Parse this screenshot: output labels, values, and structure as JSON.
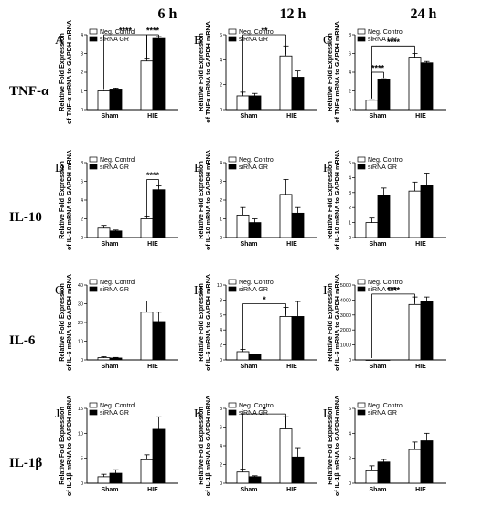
{
  "column_headers": [
    "6 h",
    "12 h",
    "24 h"
  ],
  "row_headers": [
    "TNF-α",
    "IL-10",
    "IL-6",
    "IL-1β"
  ],
  "legend": [
    "Neg. Control",
    "siRNA GR"
  ],
  "colors": {
    "neg_control": "#ffffff",
    "sirna_gr": "#000000",
    "axis": "#000000"
  },
  "chart_data": [
    {
      "type": "bar",
      "letter": "A",
      "ylabel": "Relative Fold Expression of TNF-α mRNA to GAPDH mRNA",
      "categories": [
        "Sham",
        "HIE"
      ],
      "ylim": [
        0,
        4
      ],
      "yticks": [
        0,
        1,
        2,
        3,
        4
      ],
      "series": [
        {
          "name": "Neg. Control",
          "values": [
            1.0,
            2.6
          ],
          "errors": [
            0.05,
            0.1
          ]
        },
        {
          "name": "siRNA GR",
          "values": [
            1.1,
            3.8
          ],
          "errors": [
            0.05,
            0.1
          ]
        }
      ],
      "annotations": [
        {
          "text": "****",
          "from": [
            0,
            0
          ],
          "to": [
            1,
            0
          ],
          "y": 4.5
        },
        {
          "text": "****",
          "from": [
            1,
            0
          ],
          "to": [
            1,
            1
          ],
          "y": 4.2
        }
      ]
    },
    {
      "type": "bar",
      "letter": "B",
      "ylabel": "Relative Fold Expression of TNFα mRNA to GAPDH mRNA",
      "categories": [
        "Sham",
        "HIE"
      ],
      "ylim": [
        0,
        6
      ],
      "yticks": [
        0,
        2,
        4,
        6
      ],
      "series": [
        {
          "name": "Neg. Control",
          "values": [
            1.1,
            4.3
          ],
          "errors": [
            0.3,
            0.8
          ]
        },
        {
          "name": "siRNA GR",
          "values": [
            1.1,
            2.6
          ],
          "errors": [
            0.2,
            0.5
          ]
        }
      ],
      "annotations": [
        {
          "text": "**",
          "from": [
            0,
            0
          ],
          "to": [
            1,
            0
          ],
          "y": 6.2
        }
      ]
    },
    {
      "type": "bar",
      "letter": "C",
      "ylabel": "Relative Fold Expression of TNFα mRNA to GAPDH mRNA",
      "categories": [
        "Sham",
        "HIE"
      ],
      "ylim": [
        0,
        8
      ],
      "yticks": [
        0,
        2,
        4,
        6,
        8
      ],
      "series": [
        {
          "name": "Neg. Control",
          "values": [
            1.0,
            5.6
          ],
          "errors": [
            0.05,
            0.4
          ]
        },
        {
          "name": "siRNA GR",
          "values": [
            3.2,
            5.0
          ],
          "errors": [
            0.1,
            0.15
          ]
        }
      ],
      "annotations": [
        {
          "text": "****",
          "from": [
            0,
            0
          ],
          "to": [
            0,
            1
          ],
          "y": 4.0
        },
        {
          "text": "****",
          "from": [
            0,
            0
          ],
          "to": [
            1,
            0
          ],
          "y": 6.8
        }
      ]
    },
    {
      "type": "bar",
      "letter": "D",
      "ylabel": "Relative Fold Expression of IL-10 mRNA to GAPDH mRNA",
      "categories": [
        "Sham",
        "HIE"
      ],
      "ylim": [
        0,
        8
      ],
      "yticks": [
        0,
        2,
        4,
        6,
        8
      ],
      "series": [
        {
          "name": "Neg. Control",
          "values": [
            1.0,
            2.0
          ],
          "errors": [
            0.3,
            0.3
          ]
        },
        {
          "name": "siRNA GR",
          "values": [
            0.7,
            5.1
          ],
          "errors": [
            0.1,
            0.4
          ]
        }
      ],
      "annotations": [
        {
          "text": "****",
          "from": [
            1,
            0
          ],
          "to": [
            1,
            1
          ],
          "y": 6.2
        }
      ]
    },
    {
      "type": "bar",
      "letter": "E",
      "ylabel": "Relative Fold Expression of IL-10 mRNA to GAPDH mRNA",
      "categories": [
        "Sham",
        "HIE"
      ],
      "ylim": [
        0,
        4
      ],
      "yticks": [
        0,
        1,
        2,
        3,
        4
      ],
      "series": [
        {
          "name": "Neg. Control",
          "values": [
            1.2,
            2.3
          ],
          "errors": [
            0.4,
            0.8
          ]
        },
        {
          "name": "siRNA GR",
          "values": [
            0.8,
            1.3
          ],
          "errors": [
            0.2,
            0.3
          ]
        }
      ],
      "annotations": []
    },
    {
      "type": "bar",
      "letter": "F",
      "ylabel": "Relative Fold Expression of IL-10 mRNA to GAPDH mRNA",
      "categories": [
        "Sham",
        "HIE"
      ],
      "ylim": [
        0,
        5
      ],
      "yticks": [
        0,
        1,
        2,
        3,
        4,
        5
      ],
      "series": [
        {
          "name": "Neg. Control",
          "values": [
            1.0,
            3.1
          ],
          "errors": [
            0.3,
            0.6
          ]
        },
        {
          "name": "siRNA GR",
          "values": [
            2.8,
            3.5
          ],
          "errors": [
            0.5,
            0.8
          ]
        }
      ],
      "annotations": []
    },
    {
      "type": "bar",
      "letter": "G",
      "ylabel": "Relative Fold Expression of IL-6 mRNA to GAPDH mRNA",
      "categories": [
        "Sham",
        "HIE"
      ],
      "ylim": [
        0,
        40
      ],
      "yticks": [
        0,
        10,
        20,
        30,
        40
      ],
      "series": [
        {
          "name": "Neg. Control",
          "values": [
            1.2,
            25.5
          ],
          "errors": [
            0.5,
            6.0
          ]
        },
        {
          "name": "siRNA GR",
          "values": [
            1.0,
            20.5
          ],
          "errors": [
            0.3,
            5.0
          ]
        }
      ],
      "annotations": []
    },
    {
      "type": "bar",
      "letter": "H",
      "ylabel": "Relative Fold Expression of IL-6 mRNA to GAPDH mRNA",
      "categories": [
        "Sham",
        "HIE"
      ],
      "ylim": [
        0,
        10
      ],
      "yticks": [
        0,
        2,
        4,
        6,
        8,
        10
      ],
      "series": [
        {
          "name": "Neg. Control",
          "values": [
            1.1,
            5.8
          ],
          "errors": [
            0.3,
            1.2
          ]
        },
        {
          "name": "siRNA GR",
          "values": [
            0.7,
            5.8
          ],
          "errors": [
            0.1,
            2.0
          ]
        }
      ],
      "annotations": [
        {
          "text": "*",
          "from": [
            0,
            0
          ],
          "to": [
            1,
            0
          ],
          "y": 7.5
        }
      ]
    },
    {
      "type": "bar",
      "letter": "I",
      "ylabel": "Relative Fold Expression of IL-6 mRNA to GAPDH mRNA",
      "categories": [
        "Sham",
        "HIE"
      ],
      "ylim": [
        0,
        5000
      ],
      "yticks": [
        0,
        1000,
        2000,
        3000,
        4000,
        5000
      ],
      "series": [
        {
          "name": "Neg. Control",
          "values": [
            1.0,
            3700
          ],
          "errors": [
            0,
            500
          ]
        },
        {
          "name": "siRNA GR",
          "values": [
            1.0,
            3900
          ],
          "errors": [
            0,
            300
          ]
        }
      ],
      "annotations": [
        {
          "text": "****",
          "from": [
            0,
            0
          ],
          "to": [
            1,
            0
          ],
          "y": 4400
        }
      ]
    },
    {
      "type": "bar",
      "letter": "J",
      "ylabel": "Relative Fold Expression of IL-1β mRNA to GAPDH mRNA",
      "categories": [
        "Sham",
        "HIE"
      ],
      "ylim": [
        0,
        15
      ],
      "yticks": [
        0,
        5,
        10,
        15
      ],
      "series": [
        {
          "name": "Neg. Control",
          "values": [
            1.3,
            4.7
          ],
          "errors": [
            0.5,
            1.0
          ]
        },
        {
          "name": "siRNA GR",
          "values": [
            2.0,
            10.8
          ],
          "errors": [
            0.7,
            2.5
          ]
        }
      ],
      "annotations": []
    },
    {
      "type": "bar",
      "letter": "K",
      "ylabel": "Relative Fold Expression of IL-1β mRNA to GAPDH mRNA",
      "categories": [
        "Sham",
        "HIE"
      ],
      "ylim": [
        0,
        8
      ],
      "yticks": [
        0,
        2,
        4,
        6,
        8
      ],
      "series": [
        {
          "name": "Neg. Control",
          "values": [
            1.2,
            5.8
          ],
          "errors": [
            0.3,
            1.3
          ]
        },
        {
          "name": "siRNA GR",
          "values": [
            0.7,
            2.8
          ],
          "errors": [
            0.1,
            1.0
          ]
        }
      ],
      "annotations": [
        {
          "text": "*",
          "from": [
            0,
            0
          ],
          "to": [
            1,
            0
          ],
          "y": 7.4
        }
      ]
    },
    {
      "type": "bar",
      "letter": "L",
      "ylabel": "Relative Fold Expression of IL-1β mRNA to GAPDH mRNA",
      "categories": [
        "Sham",
        "HIE"
      ],
      "ylim": [
        0,
        6
      ],
      "yticks": [
        0,
        2,
        4,
        6
      ],
      "series": [
        {
          "name": "Neg. Control",
          "values": [
            1.0,
            2.7
          ],
          "errors": [
            0.4,
            0.6
          ]
        },
        {
          "name": "siRNA GR",
          "values": [
            1.7,
            3.4
          ],
          "errors": [
            0.2,
            0.6
          ]
        }
      ],
      "annotations": []
    }
  ]
}
